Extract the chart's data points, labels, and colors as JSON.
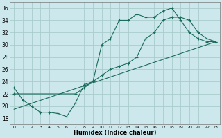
{
  "xlabel": "Humidex (Indice chaleur)",
  "bg_color": "#cce8ec",
  "grid_color": "#aacccc",
  "line_color": "#1a6b5a",
  "xlim": [
    -0.5,
    23.5
  ],
  "ylim": [
    17,
    37
  ],
  "xticks": [
    0,
    1,
    2,
    3,
    4,
    5,
    6,
    7,
    8,
    9,
    10,
    11,
    12,
    13,
    14,
    15,
    16,
    17,
    18,
    19,
    20,
    21,
    22,
    23
  ],
  "yticks": [
    18,
    20,
    22,
    24,
    26,
    28,
    30,
    32,
    34,
    36
  ],
  "line1_x": [
    0,
    1,
    2,
    3,
    4,
    5,
    6,
    7,
    8,
    9,
    10,
    11,
    12,
    13,
    14,
    15,
    16,
    17,
    18,
    19,
    20,
    21,
    22,
    23
  ],
  "line1_y": [
    23,
    21,
    20,
    19,
    19,
    18.8,
    18.3,
    20.5,
    23.5,
    24,
    30,
    31,
    34,
    34,
    35,
    34.5,
    34.5,
    35.5,
    36,
    34,
    32,
    31,
    30.5,
    30.5
  ],
  "line2_x": [
    0,
    7,
    8,
    9,
    10,
    11,
    12,
    13,
    14,
    15,
    16,
    17,
    18,
    19,
    20,
    21,
    22,
    23
  ],
  "line2_y": [
    22,
    22,
    23,
    24,
    25,
    26,
    26.5,
    27,
    28,
    31,
    32,
    34,
    34.5,
    34.5,
    34,
    32,
    31,
    30.5
  ],
  "line3_x": [
    0,
    23
  ],
  "line3_y": [
    19.5,
    30.5
  ]
}
